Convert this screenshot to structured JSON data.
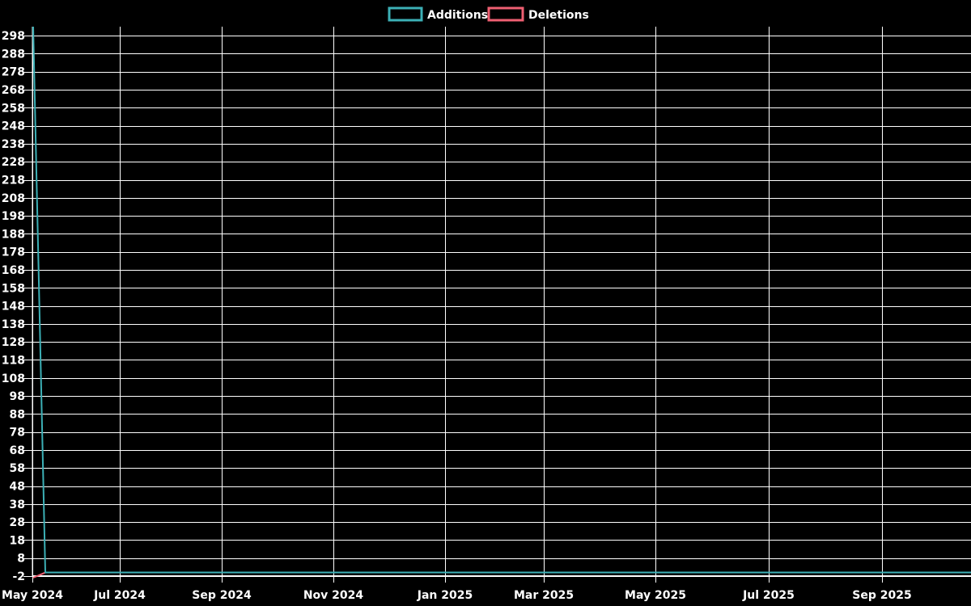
{
  "chart": {
    "background": "#000000",
    "axis_color": "#ffffff",
    "legend": {
      "position": "top-center",
      "items": [
        {
          "label": "Additions",
          "color": "#3cb0b6"
        },
        {
          "label": "Deletions",
          "color": "#ef5f72"
        }
      ]
    }
  },
  "chart_data": {
    "type": "line",
    "title": "",
    "xlabel": "",
    "ylabel": "",
    "grid": true,
    "legend_position": "top-center",
    "x_axis": {
      "granularity": "weekly",
      "range_start": "May 2024",
      "range_end": "Oct 2025",
      "tick_labels": [
        "May 2024",
        "Jul 2024",
        "Sep 2024",
        "Nov 2024",
        "Jan 2025",
        "Mar 2025",
        "May 2025",
        "Jul 2025",
        "Sep 2025"
      ]
    },
    "y_axis": {
      "range": [
        -2,
        303
      ],
      "tick_step": 10,
      "ticks": [
        -2,
        8,
        18,
        28,
        38,
        48,
        58,
        68,
        78,
        88,
        98,
        108,
        118,
        128,
        138,
        148,
        158,
        168,
        178,
        188,
        198,
        208,
        218,
        228,
        238,
        248,
        258,
        268,
        278,
        288,
        298
      ]
    },
    "series": [
      {
        "name": "Additions",
        "color": "#3cb0b6",
        "points": [
          {
            "x": "May 2024 week 1",
            "y": 303
          },
          {
            "x": "May 2024 week 2",
            "y": 0
          },
          {
            "x": "Oct 2025",
            "y": 0
          }
        ]
      },
      {
        "name": "Deletions",
        "color": "#ef5f72",
        "points": [
          {
            "x": "May 2024 week 1",
            "y": -2
          },
          {
            "x": "May 2024 week 2",
            "y": 0
          },
          {
            "x": "Oct 2025",
            "y": 0
          }
        ]
      }
    ]
  }
}
